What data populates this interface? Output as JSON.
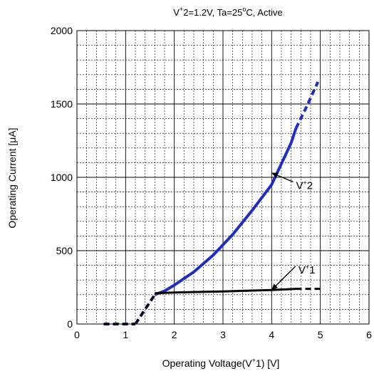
{
  "chart_data": {
    "type": "line",
    "title": {
      "pre": "V",
      "sup": "+",
      "post": "2=1.2V, Ta=25",
      "deg": "o",
      "tail": "C, Active"
    },
    "xlabel": {
      "pre": "Operating Voltage(V",
      "sup": "+",
      "post": "1) [V]"
    },
    "ylabel": "Operating Current [μA]",
    "xlim": [
      0,
      6
    ],
    "ylim": [
      0,
      2000
    ],
    "x_ticks": [
      0,
      1,
      2,
      3,
      4,
      5,
      6
    ],
    "x_tick_labels": [
      "0",
      "1",
      "2",
      "3",
      "4",
      "5",
      "6"
    ],
    "y_ticks": [
      0,
      500,
      1000,
      1500,
      2000
    ],
    "y_tick_labels": [
      "0",
      "500",
      "1000",
      "1500",
      "2000"
    ],
    "grid": true,
    "minor_divisions": {
      "x": 5,
      "y": 5
    },
    "series": [
      {
        "name": "V+2",
        "label": {
          "pre": "V",
          "sup": "+",
          "post": "2"
        },
        "color": "#1f2ebf",
        "segments": [
          {
            "style": "dashed",
            "x": [
              0.55,
              1.2
            ],
            "y": [
              0,
              0
            ]
          },
          {
            "style": "dashed",
            "x": [
              1.2,
              1.4,
              1.6
            ],
            "y": [
              0,
              100,
              200
            ]
          },
          {
            "style": "solid",
            "x": [
              1.6,
              1.8,
              2.0,
              2.4,
              2.8,
              3.2,
              3.6,
              4.0,
              4.4,
              4.5
            ],
            "y": [
              200,
              225,
              265,
              355,
              470,
              610,
              775,
              950,
              1235,
              1335
            ]
          },
          {
            "style": "dashed",
            "x": [
              4.5,
              4.7,
              4.95
            ],
            "y": [
              1335,
              1470,
              1650
            ]
          }
        ]
      },
      {
        "name": "V+1",
        "label": {
          "pre": "V",
          "sup": "+",
          "post": "1"
        },
        "color": "#000000",
        "segments": [
          {
            "style": "dashed",
            "x": [
              0.55,
              1.2
            ],
            "y": [
              0,
              0
            ]
          },
          {
            "style": "dashed",
            "x": [
              1.2,
              1.6
            ],
            "y": [
              0,
              200
            ]
          },
          {
            "style": "solid",
            "x": [
              1.6,
              2.0,
              3.0,
              4.0,
              4.5
            ],
            "y": [
              210,
              215,
              222,
              232,
              240
            ]
          },
          {
            "style": "dashed",
            "x": [
              4.5,
              5.0
            ],
            "y": [
              240,
              240
            ]
          }
        ]
      }
    ],
    "annotations": [
      {
        "series": "V+2",
        "arrow_to": [
          3.95,
          1040
        ],
        "text_at": [
          4.5,
          940
        ]
      },
      {
        "series": "V+1",
        "arrow_to": [
          3.95,
          240
        ],
        "text_at": [
          4.55,
          365
        ]
      }
    ]
  }
}
